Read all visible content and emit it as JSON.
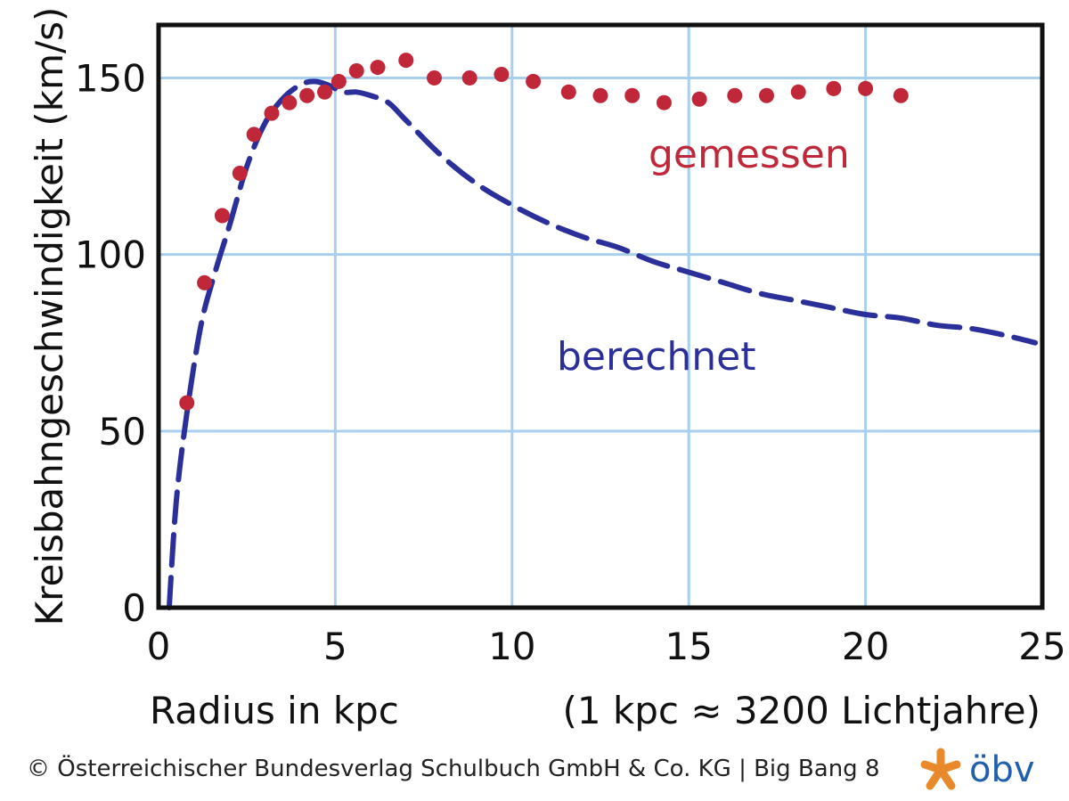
{
  "chart_data": {
    "type": "line",
    "title": "",
    "xlabel": "Radius in kpc",
    "xnote": "(1 kpc ≈ 3200 Lichtjahre)",
    "ylabel": "Kreisbahngeschwindigkeit (km/s)",
    "xlim": [
      0,
      25
    ],
    "ylim": [
      0,
      165
    ],
    "xticks": [
      0,
      5,
      10,
      15,
      20,
      25
    ],
    "yticks": [
      0,
      50,
      100,
      150
    ],
    "grid": true,
    "colors": {
      "measured": "#c0283a",
      "computed": "#2b2f9a",
      "grid": "#a9cfee",
      "axis": "#111111"
    },
    "series": [
      {
        "name": "gemessen",
        "style": "dots",
        "x": [
          0.8,
          1.3,
          1.8,
          2.3,
          2.7,
          3.2,
          3.7,
          4.2,
          4.7,
          5.1,
          5.6,
          6.2,
          7.0,
          7.8,
          8.8,
          9.7,
          10.6,
          11.6,
          12.5,
          13.4,
          14.3,
          15.3,
          16.3,
          17.2,
          18.1,
          19.1,
          20.0,
          21.0
        ],
        "y": [
          58,
          92,
          111,
          123,
          134,
          140,
          143,
          145,
          146,
          149,
          152,
          153,
          155,
          150,
          150,
          151,
          149,
          146,
          145,
          145,
          143,
          144,
          145,
          145,
          146,
          147,
          147,
          145
        ]
      },
      {
        "name": "berechnet",
        "style": "dashed",
        "x": [
          0.3,
          0.5,
          0.8,
          1.2,
          1.6,
          2.0,
          2.5,
          3.0,
          3.5,
          4.0,
          4.4,
          4.8,
          5.2,
          5.6,
          6.0,
          6.5,
          7.0,
          8.0,
          9.0,
          10.0,
          11.0,
          12.0,
          13.0,
          14.0,
          15.0,
          16.0,
          17.0,
          18.0,
          19.0,
          20.0,
          21.0,
          22.0,
          23.0,
          24.0,
          24.8
        ],
        "y": [
          0,
          30,
          55,
          80,
          95,
          108,
          125,
          137,
          144,
          148,
          149,
          148,
          146,
          146,
          145,
          143,
          138,
          128,
          120,
          114,
          109,
          105,
          102,
          98,
          95,
          92,
          89,
          87,
          85,
          83,
          82,
          80,
          79,
          77,
          75
        ]
      }
    ]
  },
  "footer": {
    "copyright": "© Österreichischer Bundesverlag Schulbuch GmbH & Co. KG |  Big Bang 8",
    "logo_text": "öbv",
    "logo_color_orange": "#e8892b",
    "logo_color_blue": "#1f5fae"
  }
}
